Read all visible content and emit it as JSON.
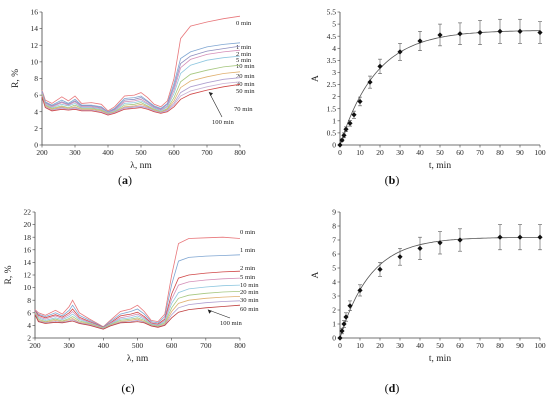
{
  "chart_data": [
    {
      "id": "a",
      "type": "line",
      "caption": "a",
      "xlabel": "λ, nm",
      "ylabel": "R, %",
      "xlim": [
        200,
        800
      ],
      "ylim": [
        0,
        16
      ],
      "xticks": [
        200,
        300,
        400,
        500,
        600,
        700,
        800
      ],
      "yticks": [
        0,
        2,
        4,
        6,
        8,
        10,
        12,
        14,
        16
      ],
      "x": [
        200,
        210,
        230,
        260,
        280,
        300,
        320,
        350,
        380,
        400,
        420,
        450,
        480,
        500,
        520,
        540,
        560,
        580,
        600,
        620,
        650,
        700,
        750,
        800
      ],
      "series": [
        {
          "name": "0 min",
          "color": "#e8777b",
          "values": [
            6.6,
            5.4,
            5.0,
            5.8,
            5.3,
            5.9,
            5.0,
            5.1,
            4.9,
            4.1,
            4.6,
            5.9,
            6.0,
            6.3,
            5.7,
            4.9,
            4.6,
            5.3,
            8.0,
            12.8,
            14.3,
            14.8,
            15.2,
            15.5
          ]
        },
        {
          "name": "1 min",
          "color": "#7fa6d2",
          "values": [
            6.5,
            5.2,
            4.8,
            5.4,
            5.0,
            5.5,
            4.8,
            4.8,
            4.6,
            4.0,
            4.4,
            5.6,
            5.7,
            5.9,
            5.3,
            4.7,
            4.4,
            5.0,
            7.4,
            10.4,
            11.2,
            11.8,
            12.1,
            12.3
          ]
        },
        {
          "name": "2 min",
          "color": "#8f8fbf",
          "values": [
            6.4,
            5.1,
            4.7,
            5.2,
            4.9,
            5.3,
            4.7,
            4.7,
            4.5,
            3.95,
            4.3,
            5.4,
            5.5,
            5.7,
            5.2,
            4.6,
            4.3,
            4.9,
            7.0,
            9.8,
            10.7,
            11.3,
            11.6,
            11.9
          ]
        },
        {
          "name": "5 min",
          "color": "#d48fb8",
          "values": [
            6.3,
            5.0,
            4.6,
            5.1,
            4.8,
            5.2,
            4.6,
            4.6,
            4.4,
            3.9,
            4.2,
            5.2,
            5.3,
            5.5,
            5.0,
            4.5,
            4.2,
            4.7,
            6.6,
            9.3,
            10.3,
            10.9,
            11.2,
            11.4
          ]
        },
        {
          "name": "10 min",
          "color": "#8fc7e0",
          "values": [
            6.2,
            4.9,
            4.5,
            4.9,
            4.7,
            5.0,
            4.5,
            4.5,
            4.3,
            3.85,
            4.1,
            5.0,
            5.1,
            5.3,
            4.9,
            4.4,
            4.1,
            4.6,
            6.2,
            8.6,
            9.6,
            10.2,
            10.5,
            10.7
          ]
        },
        {
          "name": "20 min",
          "color": "#a6c77f",
          "values": [
            6.1,
            4.8,
            4.4,
            4.7,
            4.5,
            4.8,
            4.4,
            4.4,
            4.2,
            3.8,
            4.0,
            4.8,
            4.9,
            5.1,
            4.7,
            4.3,
            4.0,
            4.4,
            5.7,
            7.6,
            8.5,
            9.0,
            9.4,
            9.6
          ]
        },
        {
          "name": "30 min",
          "color": "#e0b070",
          "values": [
            6.0,
            4.7,
            4.3,
            4.6,
            4.4,
            4.6,
            4.3,
            4.3,
            4.1,
            3.75,
            3.95,
            4.6,
            4.7,
            4.9,
            4.6,
            4.2,
            3.95,
            4.3,
            5.3,
            6.9,
            7.7,
            8.2,
            8.6,
            8.8
          ]
        },
        {
          "name": "50 min",
          "color": "#b0a0d0",
          "values": [
            5.9,
            4.6,
            4.2,
            4.5,
            4.3,
            4.5,
            4.2,
            4.2,
            4.0,
            3.7,
            3.9,
            4.5,
            4.6,
            4.7,
            4.5,
            4.1,
            3.9,
            4.2,
            5.0,
            6.3,
            7.0,
            7.5,
            7.9,
            8.1
          ]
        },
        {
          "name": "70 min",
          "color": "#c9b3d6",
          "values": [
            5.85,
            4.55,
            4.15,
            4.4,
            4.25,
            4.4,
            4.15,
            4.15,
            3.95,
            3.65,
            3.85,
            4.4,
            4.5,
            4.6,
            4.4,
            4.05,
            3.85,
            4.1,
            4.8,
            5.9,
            6.5,
            7.0,
            7.4,
            7.6
          ]
        },
        {
          "name": "100 min",
          "color": "#d04848",
          "values": [
            5.8,
            4.5,
            4.1,
            4.3,
            4.2,
            4.3,
            4.1,
            4.1,
            3.9,
            3.6,
            3.8,
            4.3,
            4.4,
            4.5,
            4.3,
            4.0,
            3.8,
            4.0,
            4.6,
            5.5,
            6.1,
            6.6,
            7.0,
            7.3
          ]
        }
      ]
    },
    {
      "id": "b",
      "type": "scatter",
      "caption": "b",
      "xlabel": "t, min",
      "ylabel": "A",
      "xlim": [
        0,
        100
      ],
      "ylim": [
        0,
        5.5
      ],
      "xticks": [
        0,
        10,
        20,
        30,
        40,
        50,
        60,
        70,
        80,
        90,
        100
      ],
      "yticks": [
        0,
        0.5,
        1,
        1.5,
        2,
        2.5,
        3,
        3.5,
        4,
        4.5,
        5,
        5.5
      ],
      "points": {
        "x": [
          0,
          1,
          2,
          3,
          5,
          7,
          10,
          15,
          20,
          30,
          40,
          50,
          60,
          70,
          80,
          90,
          100
        ],
        "y": [
          0,
          0.2,
          0.4,
          0.65,
          0.9,
          1.25,
          1.8,
          2.6,
          3.25,
          3.85,
          4.3,
          4.55,
          4.6,
          4.65,
          4.7,
          4.7,
          4.65
        ],
        "err": [
          0,
          0.05,
          0.1,
          0.1,
          0.12,
          0.15,
          0.18,
          0.25,
          0.3,
          0.35,
          0.4,
          0.45,
          0.45,
          0.5,
          0.5,
          0.5,
          0.45
        ]
      },
      "fit": {
        "amplitude": 4.75,
        "rate": 0.055
      }
    },
    {
      "id": "c",
      "type": "line",
      "caption": "c",
      "xlabel": "λ, nm",
      "ylabel": "R, %",
      "xlim": [
        200,
        800
      ],
      "ylim": [
        2,
        22
      ],
      "xticks": [
        200,
        300,
        400,
        500,
        600,
        700,
        800
      ],
      "yticks": [
        2,
        4,
        6,
        8,
        10,
        12,
        14,
        16,
        18,
        20,
        22
      ],
      "x": [
        200,
        210,
        230,
        260,
        280,
        300,
        310,
        330,
        360,
        400,
        420,
        450,
        480,
        500,
        520,
        540,
        560,
        580,
        600,
        620,
        650,
        700,
        750,
        800
      ],
      "series": [
        {
          "name": "0 min",
          "color": "#e8777b",
          "values": [
            6.5,
            6.0,
            5.6,
            6.4,
            5.8,
            7.0,
            8.0,
            6.0,
            5.0,
            3.8,
            4.8,
            6.2,
            6.6,
            7.2,
            6.2,
            4.8,
            4.6,
            5.8,
            12.0,
            17.0,
            17.8,
            17.9,
            18.0,
            17.8
          ]
        },
        {
          "name": "1 min",
          "color": "#7fa6d2",
          "values": [
            6.4,
            5.8,
            5.4,
            6.0,
            5.5,
            6.4,
            7.2,
            5.6,
            4.8,
            3.75,
            4.6,
            5.8,
            6.2,
            6.6,
            5.8,
            4.6,
            4.4,
            5.4,
            10.5,
            14.2,
            14.8,
            15.0,
            15.1,
            15.2
          ]
        },
        {
          "name": "2 min",
          "color": "#d04848",
          "values": [
            6.3,
            5.6,
            5.2,
            5.7,
            5.3,
            6.0,
            6.6,
            5.3,
            4.6,
            3.7,
            4.4,
            5.5,
            5.8,
            6.1,
            5.4,
            4.4,
            4.2,
            5.0,
            9.0,
            11.5,
            12.0,
            12.3,
            12.5,
            12.6
          ]
        },
        {
          "name": "5 min",
          "color": "#d48fb8",
          "values": [
            6.2,
            5.4,
            5.0,
            5.5,
            5.1,
            5.7,
            6.2,
            5.1,
            4.5,
            3.65,
            4.3,
            5.2,
            5.5,
            5.8,
            5.2,
            4.3,
            4.1,
            4.8,
            8.2,
            10.4,
            10.9,
            11.2,
            11.4,
            11.5
          ]
        },
        {
          "name": "10 min",
          "color": "#8fc7e0",
          "values": [
            6.1,
            5.2,
            4.8,
            5.2,
            4.9,
            5.4,
            5.8,
            4.9,
            4.4,
            3.6,
            4.2,
            5.0,
            5.2,
            5.5,
            5.0,
            4.2,
            4.0,
            4.6,
            7.5,
            9.2,
            9.8,
            10.1,
            10.3,
            10.4
          ]
        },
        {
          "name": "20 min",
          "color": "#a6c77f",
          "values": [
            6.0,
            5.0,
            4.6,
            5.0,
            4.7,
            5.1,
            5.4,
            4.7,
            4.3,
            3.55,
            4.1,
            4.8,
            5.0,
            5.2,
            4.8,
            4.1,
            3.9,
            4.4,
            6.8,
            8.3,
            8.8,
            9.1,
            9.3,
            9.4
          ]
        },
        {
          "name": "30 min",
          "color": "#e0b070",
          "values": [
            5.9,
            4.8,
            4.5,
            4.8,
            4.6,
            4.9,
            5.1,
            4.5,
            4.2,
            3.5,
            4.0,
            4.6,
            4.8,
            5.0,
            4.6,
            4.0,
            3.8,
            4.2,
            6.2,
            7.5,
            8.0,
            8.3,
            8.5,
            8.6
          ]
        },
        {
          "name": "60 min",
          "color": "#b0a0d0",
          "values": [
            5.8,
            4.7,
            4.4,
            4.6,
            4.5,
            4.7,
            4.9,
            4.4,
            4.1,
            3.45,
            3.95,
            4.5,
            4.6,
            4.8,
            4.5,
            3.95,
            3.75,
            4.1,
            5.7,
            6.8,
            7.3,
            7.6,
            7.8,
            7.9
          ]
        },
        {
          "name": "100 min",
          "color": "#c04040",
          "values": [
            5.7,
            4.6,
            4.3,
            4.5,
            4.4,
            4.6,
            4.7,
            4.3,
            4.0,
            3.4,
            3.9,
            4.4,
            4.5,
            4.6,
            4.4,
            3.9,
            3.7,
            4.0,
            5.2,
            6.1,
            6.5,
            6.8,
            7.0,
            7.2
          ]
        }
      ]
    },
    {
      "id": "d",
      "type": "scatter",
      "caption": "d",
      "xlabel": "t, min",
      "ylabel": "A",
      "xlim": [
        0,
        100
      ],
      "ylim": [
        0,
        9
      ],
      "xticks": [
        0,
        10,
        20,
        30,
        40,
        50,
        60,
        70,
        80,
        90,
        100
      ],
      "yticks": [
        0,
        1,
        2,
        3,
        4,
        5,
        6,
        7,
        8,
        9
      ],
      "points": {
        "x": [
          0,
          1,
          2,
          3,
          5,
          10,
          20,
          30,
          40,
          50,
          60,
          80,
          90,
          100
        ],
        "y": [
          0,
          0.5,
          1.0,
          1.5,
          2.3,
          3.4,
          4.9,
          5.8,
          6.4,
          6.8,
          7.0,
          7.2,
          7.2,
          7.2
        ],
        "err": [
          0,
          0.2,
          0.25,
          0.3,
          0.35,
          0.4,
          0.5,
          0.6,
          0.8,
          0.8,
          0.8,
          0.9,
          0.9,
          0.9
        ]
      },
      "fit": {
        "amplitude": 7.2,
        "rate": 0.065
      }
    }
  ]
}
